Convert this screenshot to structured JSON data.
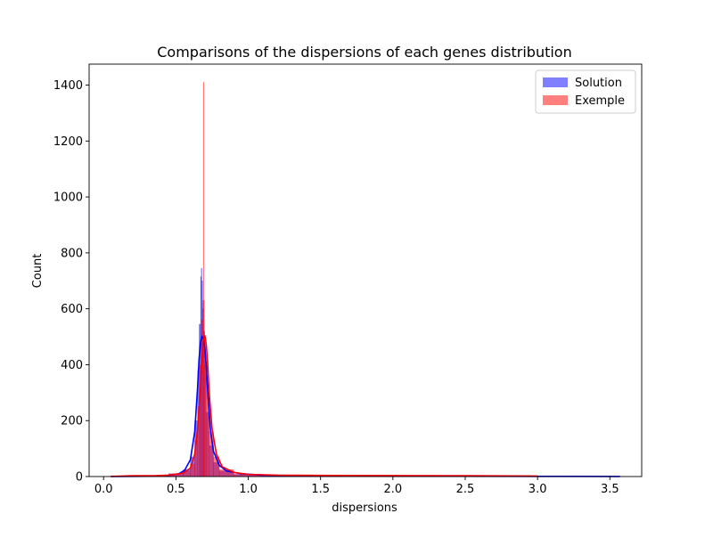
{
  "chart_data": {
    "type": "histogram",
    "title": "Comparisons of the dispersions of each genes distribution",
    "xlabel": "dispersions",
    "ylabel": "Count",
    "xlim": [
      -0.1,
      3.72
    ],
    "ylim": [
      0,
      1475
    ],
    "xticks": [
      0.0,
      0.5,
      1.0,
      1.5,
      2.0,
      2.5,
      3.0,
      3.5
    ],
    "xtick_labels": [
      "0.0",
      "0.5",
      "1.0",
      "1.5",
      "2.0",
      "2.5",
      "3.0",
      "3.5"
    ],
    "yticks": [
      0,
      200,
      400,
      600,
      800,
      1000,
      1200,
      1400
    ],
    "ytick_labels": [
      "0",
      "200",
      "400",
      "600",
      "800",
      "1000",
      "1200",
      "1400"
    ],
    "grid": false,
    "legend": {
      "position": "top-right"
    },
    "series": [
      {
        "name": "Solution",
        "color": "#0000ff",
        "alpha": 0.5,
        "bins": [
          [
            0.05,
            0.45,
            2
          ],
          [
            0.45,
            0.55,
            10
          ],
          [
            0.55,
            0.6,
            25
          ],
          [
            0.6,
            0.63,
            70
          ],
          [
            0.63,
            0.65,
            200
          ],
          [
            0.65,
            0.66,
            380
          ],
          [
            0.66,
            0.67,
            545
          ],
          [
            0.67,
            0.675,
            715
          ],
          [
            0.675,
            0.68,
            745
          ],
          [
            0.68,
            0.685,
            700
          ],
          [
            0.685,
            0.69,
            600
          ],
          [
            0.69,
            0.7,
            520
          ],
          [
            0.7,
            0.71,
            400
          ],
          [
            0.71,
            0.73,
            230
          ],
          [
            0.73,
            0.76,
            110
          ],
          [
            0.76,
            0.8,
            50
          ],
          [
            0.8,
            0.9,
            20
          ],
          [
            0.9,
            1.1,
            8
          ],
          [
            1.1,
            1.5,
            3
          ],
          [
            1.5,
            2.5,
            1
          ],
          [
            2.5,
            3.6,
            0.5
          ]
        ],
        "kde": [
          [
            0.05,
            0.3
          ],
          [
            0.3,
            1
          ],
          [
            0.45,
            4
          ],
          [
            0.52,
            10
          ],
          [
            0.56,
            22
          ],
          [
            0.6,
            60
          ],
          [
            0.63,
            160
          ],
          [
            0.65,
            320
          ],
          [
            0.66,
            420
          ],
          [
            0.67,
            480
          ],
          [
            0.68,
            500
          ],
          [
            0.69,
            495
          ],
          [
            0.7,
            460
          ],
          [
            0.71,
            390
          ],
          [
            0.72,
            300
          ],
          [
            0.74,
            160
          ],
          [
            0.76,
            90
          ],
          [
            0.8,
            40
          ],
          [
            0.85,
            20
          ],
          [
            0.95,
            10
          ],
          [
            1.1,
            5
          ],
          [
            1.5,
            2.5
          ],
          [
            2.0,
            1.5
          ],
          [
            2.5,
            1
          ],
          [
            3.0,
            0.6
          ],
          [
            3.57,
            0.3
          ]
        ]
      },
      {
        "name": "Exemple",
        "color": "#ff0000",
        "alpha": 0.5,
        "bins": [
          [
            0.05,
            0.45,
            3
          ],
          [
            0.45,
            0.55,
            10
          ],
          [
            0.55,
            0.6,
            20
          ],
          [
            0.6,
            0.63,
            45
          ],
          [
            0.63,
            0.65,
            130
          ],
          [
            0.65,
            0.665,
            250
          ],
          [
            0.665,
            0.675,
            400
          ],
          [
            0.675,
            0.685,
            560
          ],
          [
            0.685,
            0.689,
            630
          ],
          [
            0.689,
            0.692,
            1410
          ],
          [
            0.692,
            0.697,
            630
          ],
          [
            0.697,
            0.705,
            480
          ],
          [
            0.705,
            0.715,
            410
          ],
          [
            0.715,
            0.73,
            290
          ],
          [
            0.73,
            0.76,
            160
          ],
          [
            0.76,
            0.8,
            70
          ],
          [
            0.8,
            0.9,
            25
          ],
          [
            0.9,
            1.1,
            8
          ],
          [
            1.1,
            1.5,
            4
          ],
          [
            1.5,
            2.5,
            2
          ],
          [
            2.5,
            3.0,
            1
          ]
        ],
        "kde": [
          [
            0.05,
            0.5
          ],
          [
            0.2,
            3
          ],
          [
            0.35,
            3
          ],
          [
            0.45,
            5
          ],
          [
            0.55,
            12
          ],
          [
            0.6,
            30
          ],
          [
            0.63,
            80
          ],
          [
            0.65,
            170
          ],
          [
            0.67,
            320
          ],
          [
            0.68,
            420
          ],
          [
            0.69,
            490
          ],
          [
            0.7,
            505
          ],
          [
            0.71,
            470
          ],
          [
            0.72,
            400
          ],
          [
            0.73,
            300
          ],
          [
            0.75,
            170
          ],
          [
            0.78,
            80
          ],
          [
            0.82,
            35
          ],
          [
            0.9,
            15
          ],
          [
            1.0,
            8
          ],
          [
            1.2,
            5
          ],
          [
            1.6,
            4
          ],
          [
            2.0,
            3.5
          ],
          [
            2.5,
            3
          ],
          [
            3.0,
            2
          ]
        ]
      }
    ]
  }
}
